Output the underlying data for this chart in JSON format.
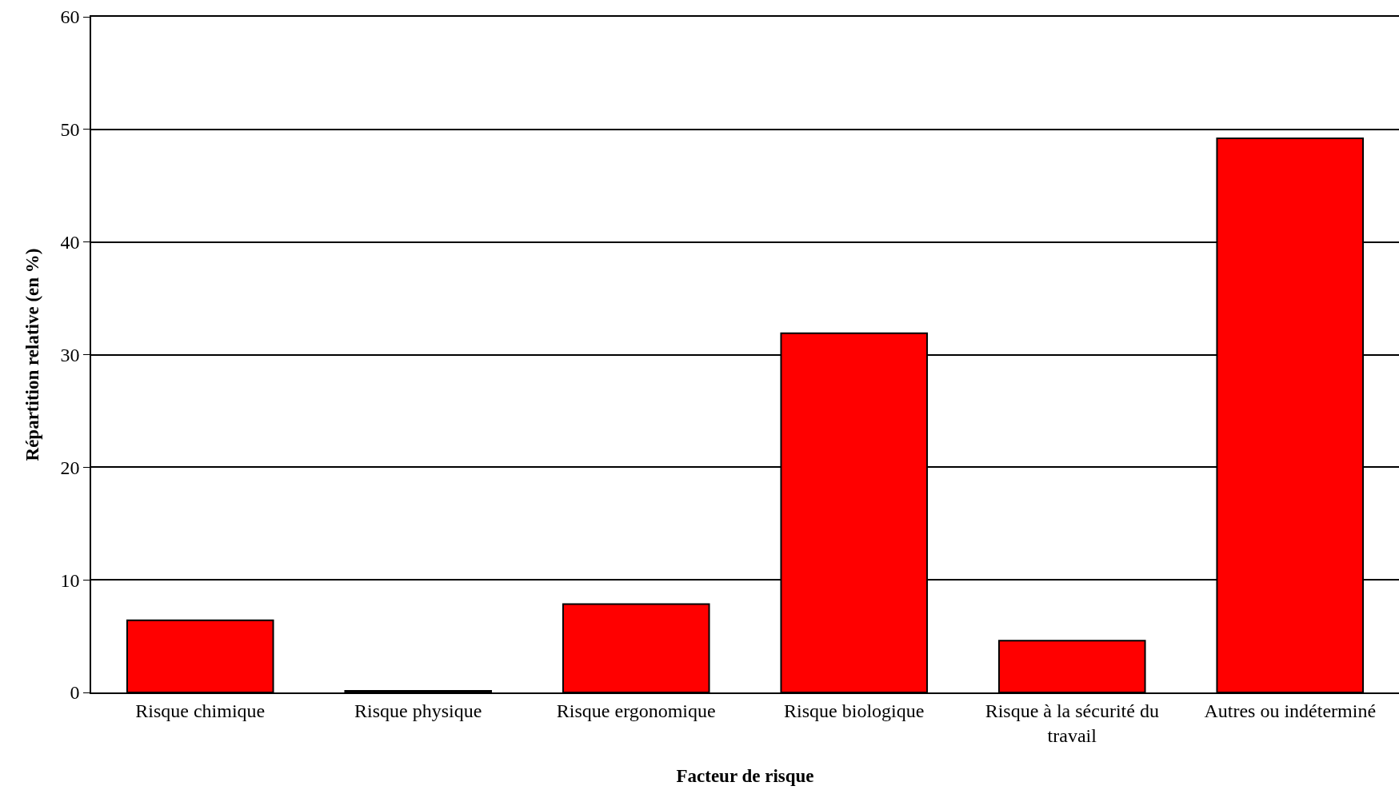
{
  "chart_data": {
    "type": "bar",
    "xlabel": "Facteur de risque",
    "ylabel": "Répartition relative (en %)",
    "categories": [
      "Risque chimique",
      "Risque physique",
      "Risque ergonomique",
      "Risque biologique",
      "Risque à la sécurité du travail",
      "Autres ou indéterminé"
    ],
    "values": [
      6.4,
      0.15,
      7.85,
      31.9,
      4.6,
      49.2
    ],
    "color": "#ff0000",
    "ylim": [
      0,
      60
    ],
    "yticks": [
      0,
      10,
      20,
      30,
      40,
      50,
      60
    ],
    "grid": "y"
  }
}
